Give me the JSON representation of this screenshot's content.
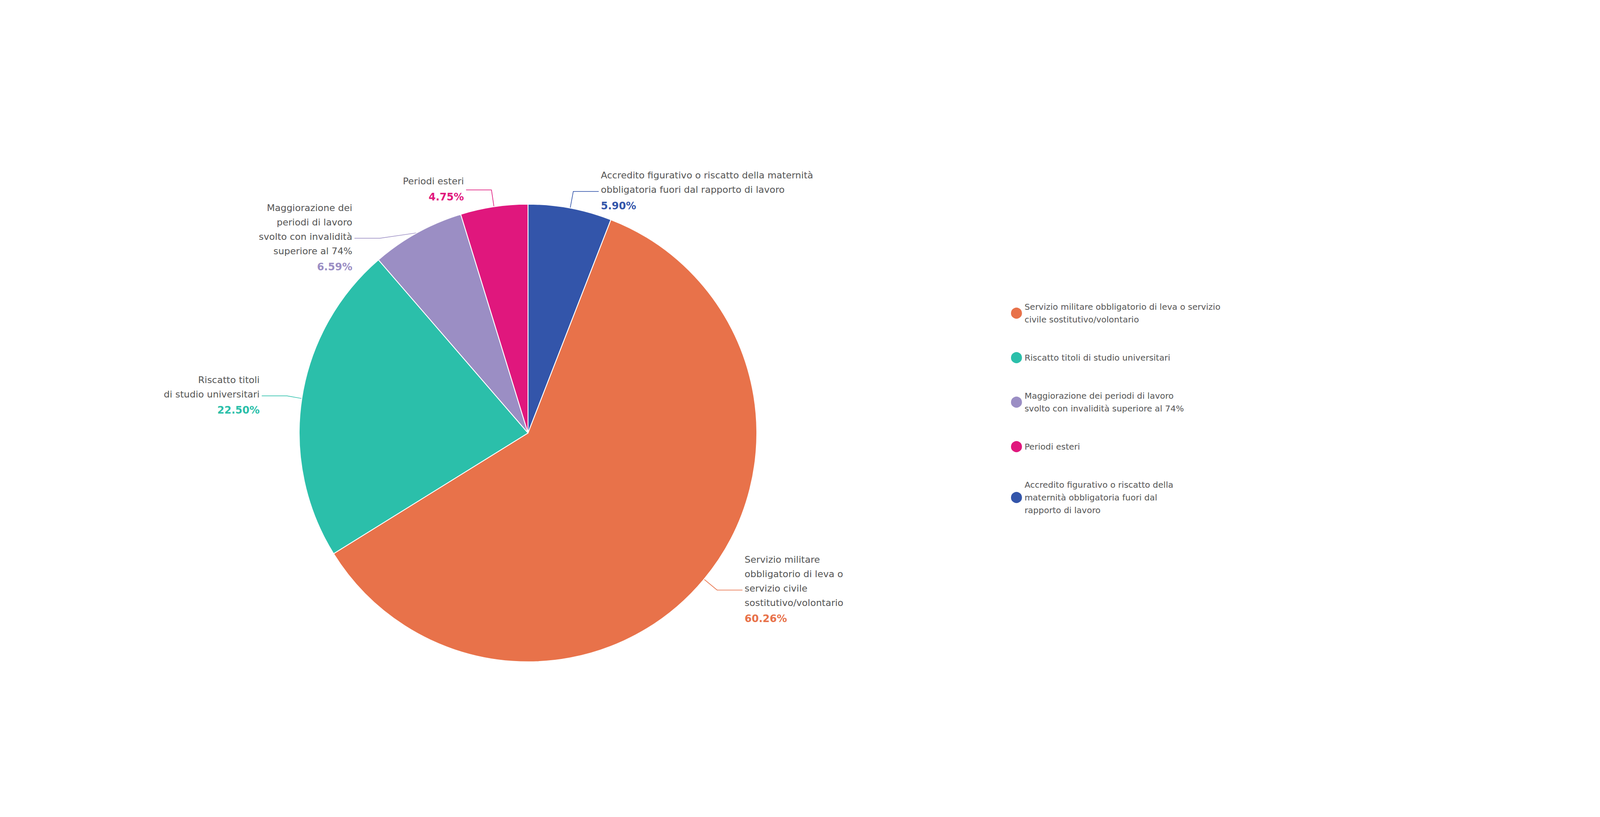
{
  "chart_data": {
    "type": "pie",
    "categories": [
      "Accredito figurativo o riscatto della maternità\nobbligatoria fuori dal rapporto di lavoro",
      "Servizio militare\nobbligatorio di leva o\nservizio civile\nsostitutivo/volontario",
      "Riscatto titoli\ndi studio universitari",
      "Maggiorazione dei\nperiodi di lavoro\nsvolto con invalidità\nsuperiore al 74%",
      "Periodi esteri"
    ],
    "values": [
      5.9,
      60.26,
      22.5,
      6.59,
      4.75
    ],
    "value_labels": [
      "5.90%",
      "60.26%",
      "22.50%",
      "6.59%",
      "4.75%"
    ],
    "colors": [
      "#3355AA",
      "#E8724A",
      "#2BBFAA",
      "#9B8EC4",
      "#E0177D"
    ],
    "legend": "right",
    "legend_entries": [
      {
        "label": "Servizio militare obbligatorio di leva o servizio\ncivile sostitutivo/volontario",
        "color": "#E8724A"
      },
      {
        "label": "Riscatto titoli di studio universitari",
        "color": "#2BBFAA"
      },
      {
        "label": "Maggiorazione dei periodi di lavoro\nsvolto con invalidità superiore al 74%",
        "color": "#9B8EC4"
      },
      {
        "label": "Periodi esteri",
        "color": "#E0177D"
      },
      {
        "label": "Accredito figurativo o riscatto della\nmaternità obbligatoria fuori dal\nrapporto di lavoro",
        "color": "#3355AA"
      }
    ]
  }
}
